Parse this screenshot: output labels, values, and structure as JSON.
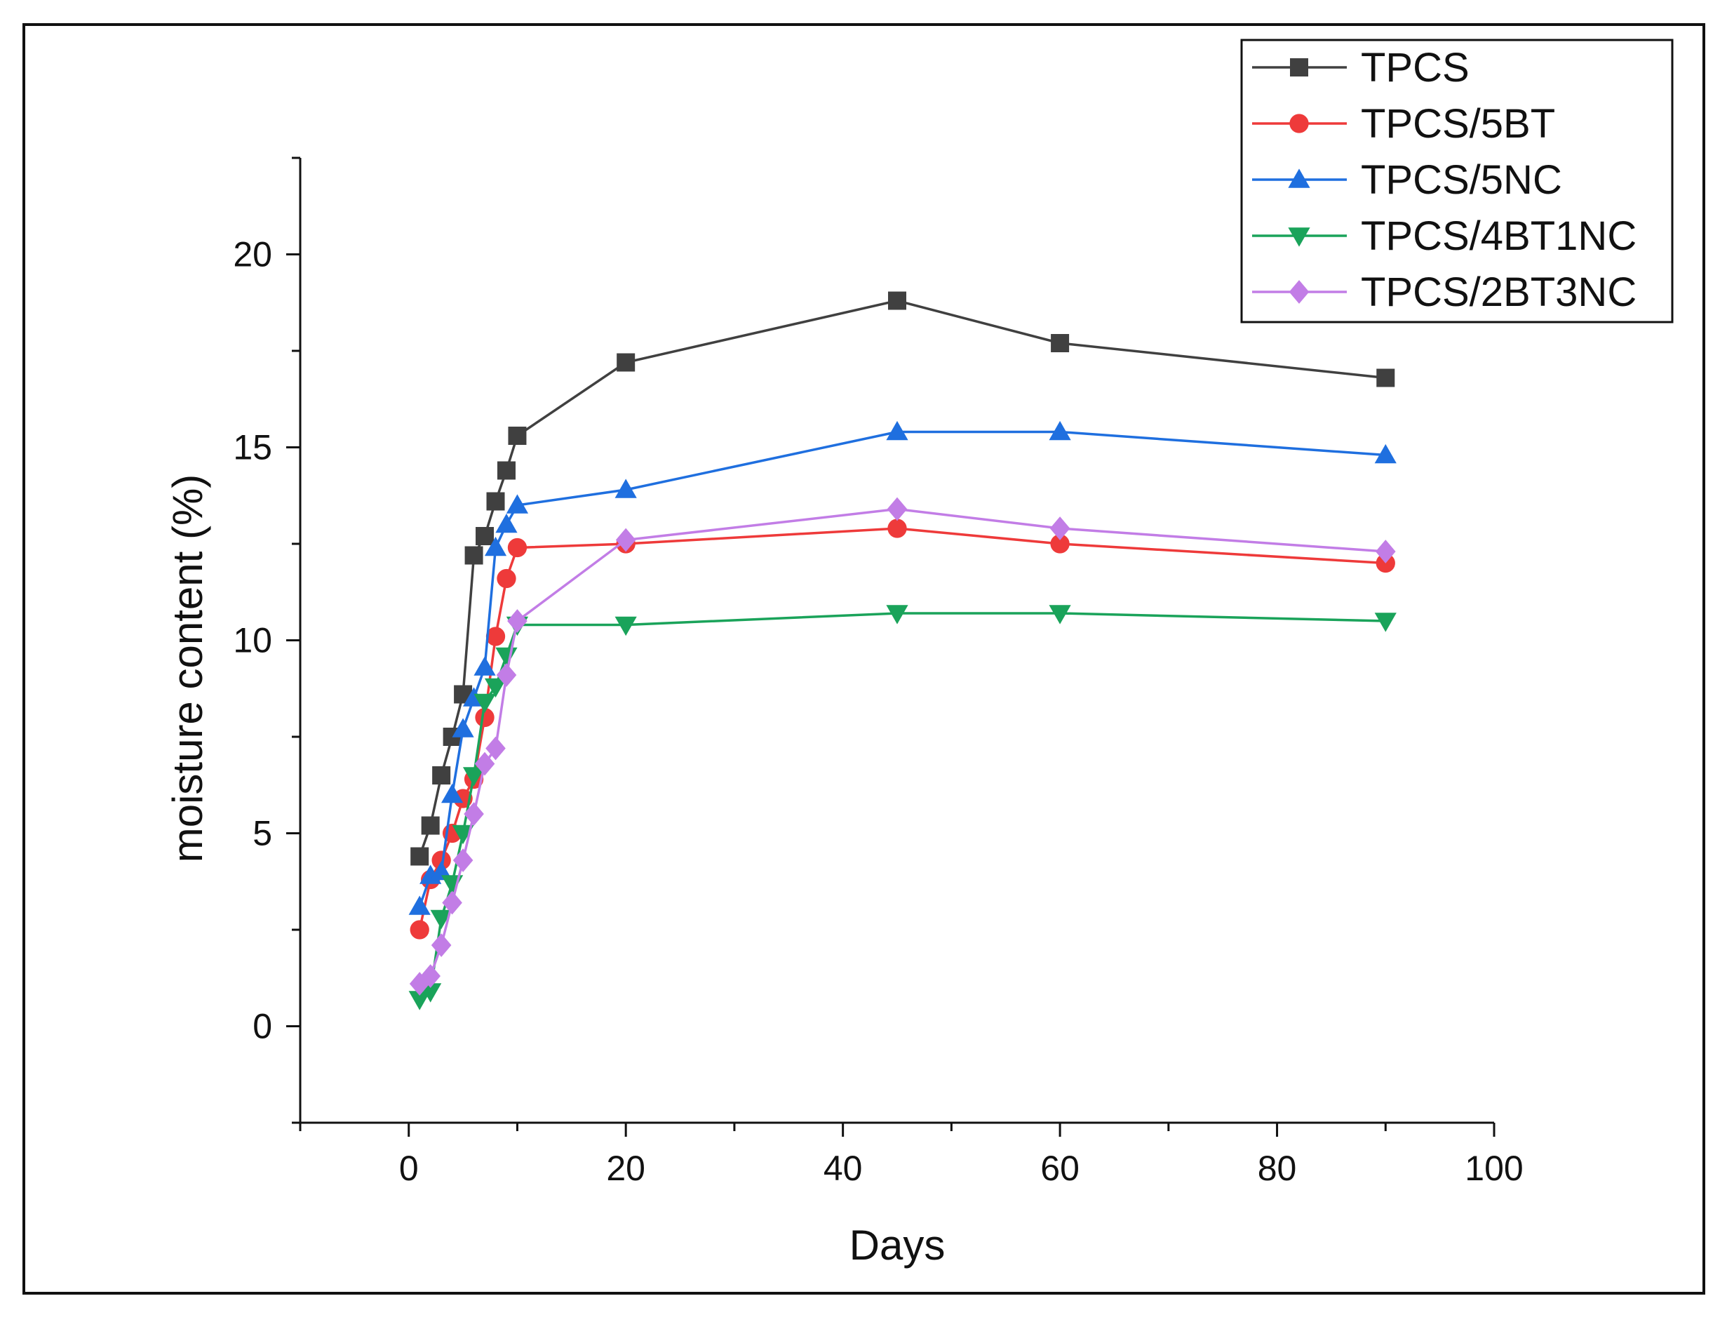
{
  "chart_data": {
    "type": "line",
    "title": "",
    "xlabel": "Days",
    "ylabel": "moisture content (%)",
    "xlim": [
      -10,
      100
    ],
    "ylim": [
      -2.5,
      22.5
    ],
    "xticks": [
      0,
      20,
      40,
      60,
      80,
      100
    ],
    "xtick_labels": [
      "0",
      "20",
      "40",
      "60",
      "80",
      "100"
    ],
    "yticks": [
      0,
      5,
      10,
      15,
      20
    ],
    "ytick_labels": [
      "0",
      "5",
      "10",
      "15",
      "20"
    ],
    "grid": false,
    "legend_position": "top-right",
    "x": [
      1,
      2,
      3,
      4,
      5,
      6,
      7,
      8,
      9,
      10,
      20,
      45,
      60,
      90
    ],
    "series": [
      {
        "name": "TPCS",
        "marker": "square",
        "color": "#404040",
        "values": [
          4.4,
          5.2,
          6.5,
          7.5,
          8.6,
          12.2,
          12.7,
          13.6,
          14.4,
          15.3,
          17.2,
          18.8,
          17.7,
          16.8
        ]
      },
      {
        "name": "TPCS/5BT",
        "marker": "circle",
        "color": "#ee3a3a",
        "values": [
          2.5,
          3.8,
          4.3,
          5.0,
          5.9,
          6.4,
          8.0,
          10.1,
          11.6,
          12.4,
          12.5,
          12.9,
          12.5,
          12.0
        ]
      },
      {
        "name": "TPCS/5NC",
        "marker": "triangle-up",
        "color": "#1f6fdf",
        "values": [
          3.1,
          3.9,
          4.0,
          6.0,
          7.7,
          8.5,
          9.3,
          12.4,
          13.0,
          13.5,
          13.9,
          15.4,
          15.4,
          14.8
        ]
      },
      {
        "name": "TPCS/4BT1NC",
        "marker": "triangle-down",
        "color": "#1aa35a",
        "values": [
          0.7,
          0.9,
          2.8,
          3.7,
          5.0,
          6.5,
          8.4,
          8.8,
          9.6,
          10.4,
          10.4,
          10.7,
          10.7,
          10.5
        ]
      },
      {
        "name": "TPCS/2BT3NC",
        "marker": "diamond",
        "color": "#c27de6",
        "values": [
          1.1,
          1.3,
          2.1,
          3.2,
          4.3,
          5.5,
          6.8,
          7.2,
          9.1,
          10.5,
          12.6,
          13.4,
          12.9,
          12.3
        ]
      }
    ]
  }
}
